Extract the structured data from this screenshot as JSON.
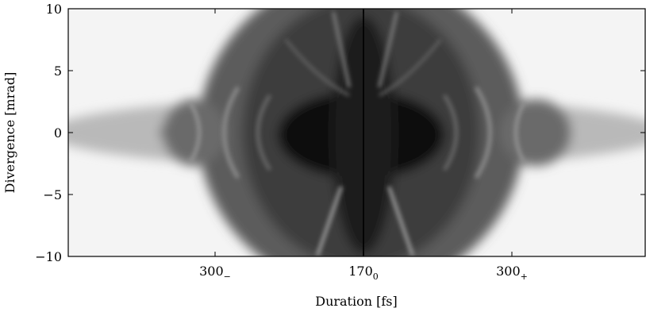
{
  "chart_data": {
    "type": "heatmap",
    "title": "",
    "xlabel": "Duration [fs]",
    "ylabel": "Divergence [mrad]",
    "ylim": [
      -10,
      10
    ],
    "y_ticks": [
      {
        "value": 10,
        "label": "10"
      },
      {
        "value": 5,
        "label": "5"
      },
      {
        "value": 0,
        "label": "0"
      },
      {
        "value": -5,
        "label": "−5"
      },
      {
        "value": -10,
        "label": "−10"
      }
    ],
    "x_ticks": [
      {
        "value": -1,
        "base": "300",
        "sub": "−"
      },
      {
        "value": 0,
        "base": "170",
        "sub": "0"
      },
      {
        "value": 1,
        "base": "300",
        "sub": "+"
      }
    ],
    "colormap": [
      "#000000",
      "#ffffff"
    ],
    "grid": false,
    "legend": "none"
  }
}
